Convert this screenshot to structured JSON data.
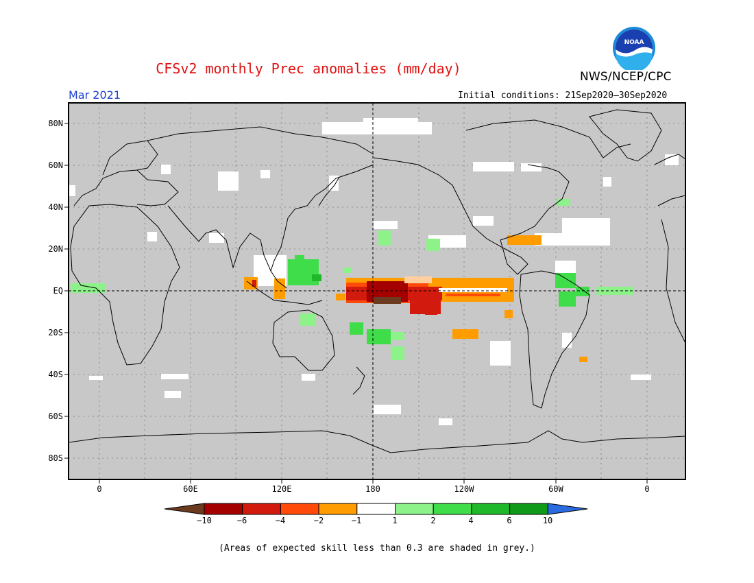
{
  "header": {
    "title": "CFSv2 monthly Prec anomalies (mm/day)",
    "org": "NWS/NCEP/CPC",
    "logo_text": "NOAA",
    "month": "Mar 2021",
    "initial_conditions": "Initial conditions: 21Sep2020–30Sep2020"
  },
  "map": {
    "lat_labels": [
      "80N",
      "60N",
      "40N",
      "20N",
      "EQ",
      "20S",
      "40S",
      "60S",
      "80S"
    ],
    "lon_labels": [
      "0",
      "60E",
      "120E",
      "180",
      "120W",
      "60W",
      "0"
    ],
    "background_color": "#c8c8c8",
    "coastline_color": "#000000"
  },
  "colorbar": {
    "labels": [
      "−10",
      "−6",
      "−4",
      "−2",
      "−1",
      "1",
      "2",
      "4",
      "6",
      "10"
    ],
    "colors": [
      "#6b3a1f",
      "#a50000",
      "#d21a0e",
      "#ff4a0a",
      "#ff9d00",
      "#ffffff",
      "#8ef28a",
      "#3fdd4a",
      "#1fb82a",
      "#0f9a1a",
      "#2a6be0"
    ]
  },
  "footnote": "(Areas of expected skill less than 0.3 are shaded in grey.)"
}
